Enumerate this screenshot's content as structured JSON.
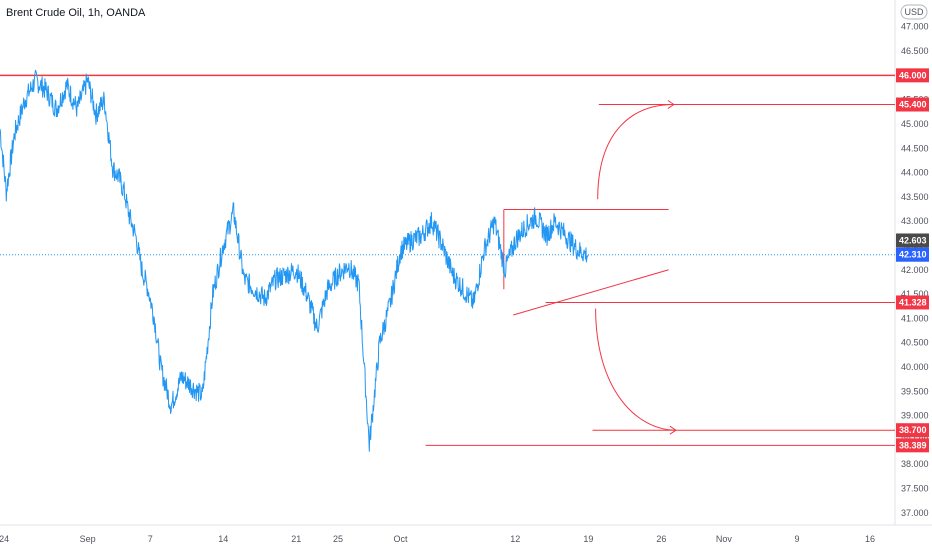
{
  "header": {
    "title": "Brent Crude Oil, 1h, OANDA"
  },
  "currency": {
    "label": "USD"
  },
  "chart_data": {
    "type": "line",
    "title": "Brent Crude Oil, 1h, OANDA",
    "ylim": [
      36.75,
      47.55
    ],
    "y_ticks": [
      "37.000",
      "37.500",
      "38.000",
      "38.500",
      "39.000",
      "39.500",
      "40.000",
      "40.500",
      "41.000",
      "41.500",
      "42.000",
      "42.500",
      "43.000",
      "43.500",
      "44.000",
      "44.500",
      "45.000",
      "45.500",
      "46.000",
      "46.500",
      "47.000"
    ],
    "x_ticks": [
      "24",
      "Sep",
      "7",
      "14",
      "21",
      "25",
      "Oct",
      "12",
      "19",
      "26",
      "Nov",
      "9",
      "16"
    ],
    "x_tick_days": [
      -8,
      0,
      6,
      13,
      20,
      24,
      30,
      41,
      48,
      55,
      61,
      68,
      75
    ],
    "xlim": [
      -8.4,
      77.4
    ],
    "series": [
      {
        "values_x_days": [
          -8.4,
          -7.8,
          -7,
          -6,
          -5,
          -4,
          -3,
          -2,
          -1,
          0,
          0.8,
          1.6,
          2.4,
          3,
          3.5,
          4,
          4.6,
          5.2,
          5.8,
          6.4,
          7,
          8,
          9,
          10,
          11,
          12,
          13,
          14,
          15,
          16,
          17,
          18,
          19,
          20,
          21,
          22,
          23,
          24,
          25,
          26,
          27,
          28,
          29,
          30,
          31,
          32,
          33,
          34,
          35,
          36,
          37,
          38,
          39,
          40,
          41,
          42,
          43,
          44,
          44.8,
          45.5,
          46.2,
          47,
          48
        ],
        "values": [
          44.9,
          43.6,
          44.8,
          45.5,
          45.9,
          45.7,
          45.3,
          45.8,
          45.3,
          45.9,
          45.2,
          45.5,
          44.1,
          43.9,
          43.6,
          43.1,
          42.7,
          42.0,
          41.6,
          41.0,
          40.0,
          39.2,
          39.8,
          39.6,
          39.4,
          41.5,
          42.5,
          43.2,
          41.8,
          41.6,
          41.4,
          41.8,
          41.9,
          42.0,
          41.5,
          40.8,
          41.6,
          41.9,
          42.1,
          41.7,
          38.4,
          40.5,
          41.3,
          42.4,
          42.6,
          42.7,
          43.0,
          42.5,
          41.9,
          41.6,
          41.3,
          42.4,
          43.0,
          42.0,
          42.6,
          42.9,
          43.1,
          42.7,
          43.0,
          42.8,
          42.6,
          42.4,
          42.3
        ]
      }
    ],
    "last_price": "42.603",
    "current_price": "42.310",
    "levels": [
      "46.000",
      "45.400",
      "41.328",
      "38.700",
      "38.389"
    ]
  }
}
